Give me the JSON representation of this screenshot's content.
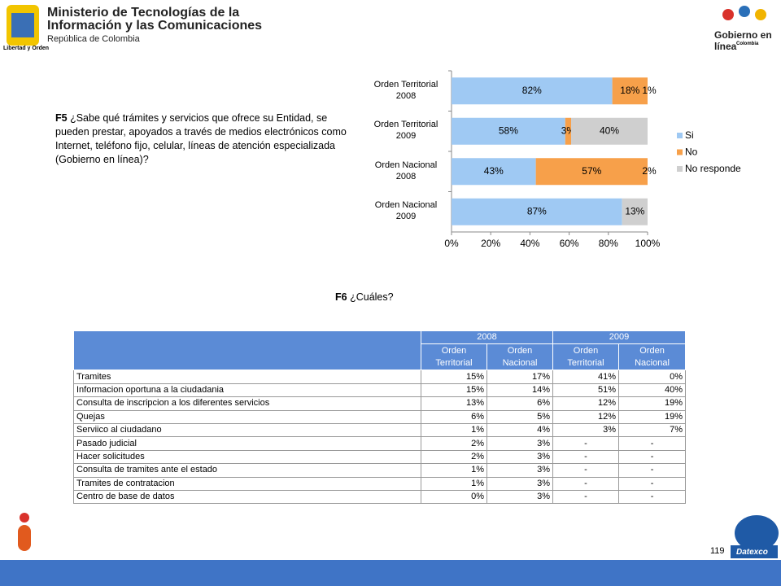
{
  "header": {
    "ministry": [
      "Ministerio de Tecnologías de la",
      "Información y las Comunicaciones"
    ],
    "country": "República de Colombia",
    "motto": "Libertad y Orden",
    "gel": "Gobierno en línea",
    "gel_country": "Colombia"
  },
  "question_f5": {
    "code": "F5",
    "text": "¿Sabe qué trámites y servicios que ofrece su  Entidad, se  pueden prestar, apoyados a través de  medios electrónicos como Internet, teléfono fijo, celular, líneas de atención especializada  (Gobierno en línea)?"
  },
  "chart_data": {
    "type": "stacked_barh",
    "categories": [
      "Orden Territorial 2008",
      "Orden Territorial 2009",
      "Orden Nacional 2008",
      "Orden Nacional 2009"
    ],
    "series": [
      {
        "name": "Si",
        "color": "#9fc9f3",
        "values": [
          82,
          58,
          43,
          87
        ],
        "value_labels": [
          "82%",
          "58%",
          "43%",
          "87%"
        ]
      },
      {
        "name": "No",
        "color": "#f7a04a",
        "values": [
          18,
          3,
          57,
          0
        ],
        "value_labels": [
          "18%",
          "3%",
          "57%",
          null
        ]
      },
      {
        "name": "No responde",
        "color": "#cfcfcf",
        "values": [
          1,
          40,
          2,
          13
        ],
        "value_labels": [
          "1%",
          "40%",
          "2%",
          "13%"
        ]
      }
    ],
    "xlim": [
      0,
      100
    ],
    "xticks": [
      {
        "value": 0,
        "label": "0%"
      },
      {
        "value": 20,
        "label": "20%"
      },
      {
        "value": 40,
        "label": "40%"
      },
      {
        "value": 60,
        "label": "60%"
      },
      {
        "value": 80,
        "label": "80%"
      },
      {
        "value": 100,
        "label": "100%"
      }
    ],
    "legend": "right"
  },
  "question_f6": {
    "code": "F6",
    "text": "¿Cuáles?"
  },
  "table": {
    "years": [
      "2008",
      "2009"
    ],
    "columns": [
      "Orden Territorial",
      "Orden Nacional",
      "Orden Territorial",
      "Orden Nacional"
    ],
    "rows": [
      [
        "Tramites",
        "15%",
        "17%",
        "41%",
        "0%"
      ],
      [
        "Informacion oportuna a la ciudadania",
        "15%",
        "14%",
        "51%",
        "40%"
      ],
      [
        "Consulta de inscripcion a los diferentes servicios",
        "13%",
        "6%",
        "12%",
        "19%"
      ],
      [
        "Quejas",
        "6%",
        "5%",
        "12%",
        "19%"
      ],
      [
        "Serviico al ciudadano",
        "1%",
        "4%",
        "3%",
        "7%"
      ],
      [
        "Pasado judicial",
        "2%",
        "3%",
        "-",
        "-"
      ],
      [
        "Hacer solicitudes",
        "2%",
        "3%",
        "-",
        "-"
      ],
      [
        "Consulta de tramites ante el estado",
        "1%",
        "3%",
        "-",
        "-"
      ],
      [
        "Tramites de contratacion",
        "1%",
        "3%",
        "-",
        "-"
      ],
      [
        "Centro de base de datos",
        "0%",
        "3%",
        "-",
        "-"
      ]
    ]
  },
  "page_number": "119",
  "footer_logo": "Datexco"
}
